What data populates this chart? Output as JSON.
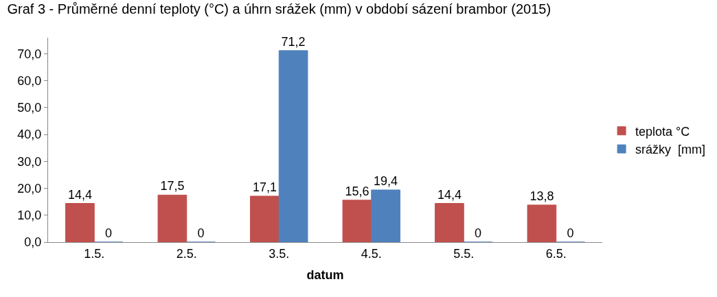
{
  "chart_data": {
    "type": "bar",
    "title": "Graf 3 - Průměrné denní teploty (°C) a úhrn srážek (mm) v období sázení brambor (2015)",
    "xlabel": "datum",
    "categories": [
      "1.5.",
      "2.5.",
      "3.5.",
      "4.5.",
      "5.5.",
      "6.5."
    ],
    "series": [
      {
        "name": "teplota °C",
        "color": "#c0504d",
        "values": [
          14.4,
          17.5,
          17.1,
          15.6,
          14.4,
          13.8
        ],
        "value_labels": [
          "14,4",
          "17,5",
          "17,1",
          "15,6",
          "14,4",
          "13,8"
        ]
      },
      {
        "name": "srážky  [mm]",
        "color": "#4f81bd",
        "values": [
          0,
          0,
          71.2,
          19.4,
          0,
          0
        ],
        "value_labels": [
          "0",
          "0",
          "71,2",
          "19,4",
          "0",
          "0"
        ]
      }
    ],
    "ylim": [
      0,
      76
    ],
    "yticks": [
      {
        "value": 0,
        "label": "0,0"
      },
      {
        "value": 10,
        "label": "10,0"
      },
      {
        "value": 20,
        "label": "20,0"
      },
      {
        "value": 30,
        "label": "30,0"
      },
      {
        "value": 40,
        "label": "40,0"
      },
      {
        "value": 50,
        "label": "50,0"
      },
      {
        "value": 60,
        "label": "60,0"
      },
      {
        "value": 70,
        "label": "70,0"
      }
    ],
    "legend": "right"
  }
}
